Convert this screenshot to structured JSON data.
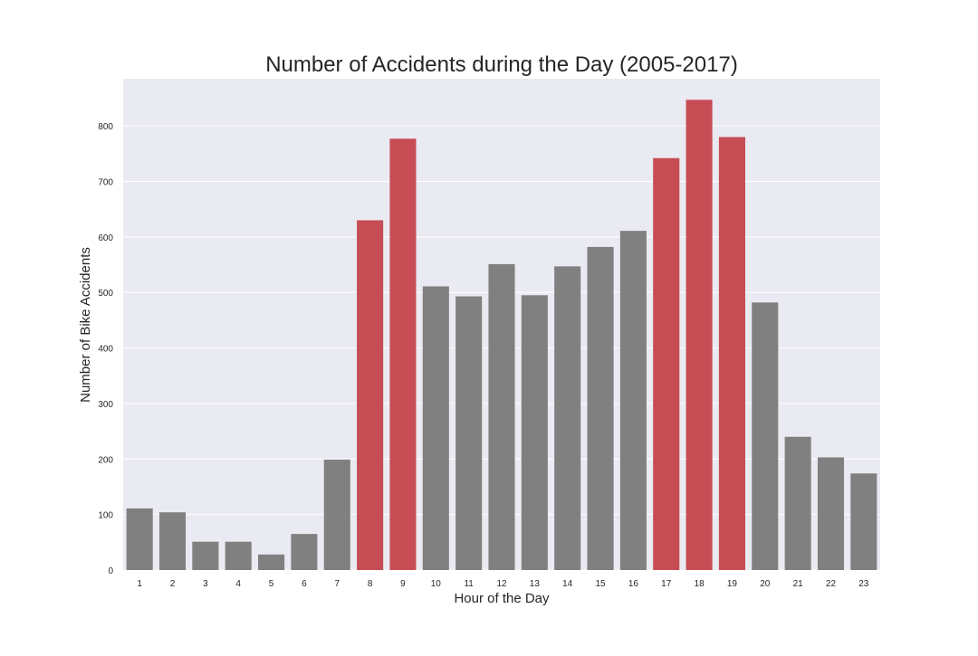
{
  "chart_data": {
    "type": "bar",
    "title": "Number of Accidents during the Day (2005-2017)",
    "xlabel": "Hour of the Day",
    "ylabel": "Number of Bike Accidents",
    "categories": [
      "1",
      "2",
      "3",
      "4",
      "5",
      "6",
      "7",
      "8",
      "9",
      "10",
      "11",
      "12",
      "13",
      "14",
      "15",
      "16",
      "17",
      "18",
      "19",
      "20",
      "21",
      "22",
      "23"
    ],
    "values": [
      111,
      104,
      51,
      51,
      28,
      65,
      199,
      630,
      777,
      511,
      493,
      551,
      495,
      547,
      582,
      611,
      742,
      847,
      780,
      482,
      240,
      203,
      174
    ],
    "highlighted_categories": [
      "8",
      "9",
      "17",
      "18",
      "19"
    ],
    "ylim": [
      0,
      885
    ],
    "yticks": [
      0,
      100,
      200,
      300,
      400,
      500,
      600,
      700,
      800
    ],
    "grid": true,
    "legend": "none",
    "colors": {
      "bar": "#808080",
      "highlight": "#c64d54",
      "plot_background": "#eaeaf2",
      "grid": "#ffffff",
      "text": "#262626"
    }
  }
}
